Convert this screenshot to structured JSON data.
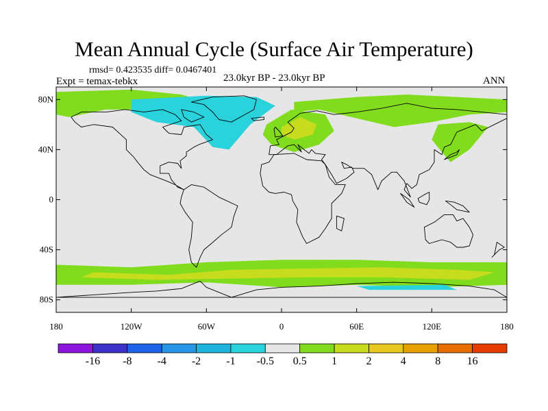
{
  "title": "Mean Annual Cycle (Surface Air Temperature)",
  "stats": {
    "rmsd_text": "rmsd= 0.423535 diff= 0.0467401"
  },
  "experiment": "Expt = temax-tebkx",
  "period": "23.0kyr BP - 23.0kyr BP",
  "season": "ANN",
  "map": {
    "lon_range": [
      -180,
      180
    ],
    "lat_range": [
      -90,
      90
    ],
    "lat_ticks": [
      {
        "value": 80,
        "label": "80N"
      },
      {
        "value": 40,
        "label": "40N"
      },
      {
        "value": 0,
        "label": "0"
      },
      {
        "value": -40,
        "label": "40S"
      },
      {
        "value": -80,
        "label": "80S"
      }
    ],
    "lon_ticks": [
      {
        "value": -180,
        "label": "180"
      },
      {
        "value": -120,
        "label": "120W"
      },
      {
        "value": -60,
        "label": "60W"
      },
      {
        "value": 0,
        "label": "0"
      },
      {
        "value": 60,
        "label": "60E"
      },
      {
        "value": 120,
        "label": "120E"
      },
      {
        "value": 180,
        "label": "180"
      }
    ],
    "background_color": "#e6e6e6"
  },
  "colorbar": {
    "colors": [
      "#8c14dc",
      "#3c32c8",
      "#1e64e6",
      "#2896e6",
      "#1eb4dc",
      "#2ad2dc",
      "#e6e6e6",
      "#82dc1e",
      "#c8dc1e",
      "#e6c81e",
      "#e6a000",
      "#e66e00",
      "#e63c00"
    ],
    "labels": [
      "-16",
      "-8",
      "-4",
      "-2",
      "-1",
      "-0.5",
      "0.5",
      "1",
      "2",
      "4",
      "8",
      "16"
    ]
  },
  "anomaly_regions": [
    {
      "name": "arctic-north-america",
      "color": "#82dc1e",
      "points": [
        [
          -180,
          86
        ],
        [
          -120,
          88
        ],
        [
          -80,
          84
        ],
        [
          -60,
          78
        ],
        [
          -95,
          72
        ],
        [
          -140,
          72
        ],
        [
          -170,
          66
        ],
        [
          -180,
          68
        ]
      ]
    },
    {
      "name": "greenland-north-atlantic",
      "color": "#2ad2dc",
      "points": [
        [
          -120,
          80
        ],
        [
          -60,
          83
        ],
        [
          -20,
          82
        ],
        [
          -5,
          75
        ],
        [
          -25,
          60
        ],
        [
          -42,
          40
        ],
        [
          -55,
          42
        ],
        [
          -70,
          58
        ],
        [
          -100,
          62
        ],
        [
          -120,
          70
        ]
      ]
    },
    {
      "name": "eurasia-arctic",
      "color": "#82dc1e",
      "points": [
        [
          10,
          78
        ],
        [
          60,
          82
        ],
        [
          100,
          84
        ],
        [
          140,
          82
        ],
        [
          180,
          80
        ],
        [
          180,
          70
        ],
        [
          150,
          68
        ],
        [
          120,
          62
        ],
        [
          90,
          58
        ],
        [
          60,
          65
        ],
        [
          30,
          72
        ],
        [
          10,
          70
        ]
      ]
    },
    {
      "name": "europe",
      "color": "#82dc1e",
      "points": [
        [
          -12,
          60
        ],
        [
          8,
          72
        ],
        [
          35,
          68
        ],
        [
          42,
          55
        ],
        [
          30,
          44
        ],
        [
          10,
          38
        ],
        [
          -8,
          44
        ],
        [
          -15,
          52
        ]
      ]
    },
    {
      "name": "europe-warm-core",
      "color": "#c8dc1e",
      "points": [
        [
          0,
          58
        ],
        [
          15,
          66
        ],
        [
          28,
          60
        ],
        [
          25,
          52
        ],
        [
          10,
          48
        ],
        [
          0,
          52
        ]
      ]
    },
    {
      "name": "east-asia",
      "color": "#82dc1e",
      "points": [
        [
          125,
          60
        ],
        [
          150,
          62
        ],
        [
          165,
          58
        ],
        [
          150,
          40
        ],
        [
          135,
          30
        ],
        [
          128,
          38
        ],
        [
          120,
          48
        ]
      ]
    },
    {
      "name": "southern-ocean-band",
      "color": "#82dc1e",
      "points": [
        [
          -180,
          -52
        ],
        [
          -120,
          -54
        ],
        [
          -60,
          -50
        ],
        [
          0,
          -48
        ],
        [
          60,
          -48
        ],
        [
          120,
          -50
        ],
        [
          180,
          -50
        ],
        [
          180,
          -68
        ],
        [
          120,
          -70
        ],
        [
          60,
          -68
        ],
        [
          0,
          -70
        ],
        [
          -60,
          -66
        ],
        [
          -120,
          -68
        ],
        [
          -180,
          -68
        ]
      ]
    },
    {
      "name": "southern-ocean-warm",
      "color": "#c8dc1e",
      "points": [
        [
          -150,
          -58
        ],
        [
          -90,
          -60
        ],
        [
          -40,
          -56
        ],
        [
          20,
          -55
        ],
        [
          80,
          -54
        ],
        [
          140,
          -56
        ],
        [
          170,
          -58
        ],
        [
          150,
          -64
        ],
        [
          80,
          -62
        ],
        [
          20,
          -62
        ],
        [
          -40,
          -63
        ],
        [
          -100,
          -64
        ],
        [
          -160,
          -62
        ]
      ]
    },
    {
      "name": "ross-sea-cool",
      "color": "#2ad2dc",
      "points": [
        [
          60,
          -69
        ],
        [
          130,
          -68
        ],
        [
          140,
          -72
        ],
        [
          70,
          -72
        ]
      ]
    }
  ],
  "coastlines": [
    {
      "name": "north-america",
      "points": [
        [
          -168,
          66
        ],
        [
          -160,
          70
        ],
        [
          -140,
          70
        ],
        [
          -125,
          72
        ],
        [
          -110,
          70
        ],
        [
          -95,
          72
        ],
        [
          -85,
          68
        ],
        [
          -80,
          63
        ],
        [
          -95,
          58
        ],
        [
          -90,
          53
        ],
        [
          -80,
          52
        ],
        [
          -78,
          58
        ],
        [
          -65,
          60
        ],
        [
          -60,
          52
        ],
        [
          -55,
          48
        ],
        [
          -66,
          44
        ],
        [
          -70,
          42
        ],
        [
          -76,
          38
        ],
        [
          -76,
          35
        ],
        [
          -81,
          31
        ],
        [
          -80,
          25
        ],
        [
          -83,
          29
        ],
        [
          -90,
          30
        ],
        [
          -97,
          27
        ],
        [
          -97,
          21
        ],
        [
          -90,
          21
        ],
        [
          -88,
          16
        ],
        [
          -83,
          10
        ],
        [
          -78,
          8
        ],
        [
          -85,
          12
        ],
        [
          -92,
          15
        ],
        [
          -105,
          20
        ],
        [
          -110,
          24
        ],
        [
          -115,
          30
        ],
        [
          -118,
          34
        ],
        [
          -124,
          40
        ],
        [
          -124,
          48
        ],
        [
          -135,
          58
        ],
        [
          -150,
          60
        ],
        [
          -160,
          58
        ],
        [
          -165,
          62
        ]
      ]
    },
    {
      "name": "greenland",
      "points": [
        [
          -72,
          78
        ],
        [
          -55,
          82
        ],
        [
          -30,
          83
        ],
        [
          -20,
          80
        ],
        [
          -22,
          72
        ],
        [
          -40,
          62
        ],
        [
          -50,
          64
        ],
        [
          -55,
          70
        ],
        [
          -62,
          76
        ]
      ]
    },
    {
      "name": "south-america",
      "points": [
        [
          -78,
          8
        ],
        [
          -72,
          12
        ],
        [
          -62,
          10
        ],
        [
          -50,
          2
        ],
        [
          -35,
          -5
        ],
        [
          -38,
          -13
        ],
        [
          -40,
          -22
        ],
        [
          -48,
          -28
        ],
        [
          -56,
          -35
        ],
        [
          -62,
          -40
        ],
        [
          -65,
          -46
        ],
        [
          -68,
          -54
        ],
        [
          -72,
          -50
        ],
        [
          -74,
          -40
        ],
        [
          -72,
          -30
        ],
        [
          -71,
          -18
        ],
        [
          -77,
          -10
        ],
        [
          -81,
          -3
        ],
        [
          -80,
          2
        ]
      ]
    },
    {
      "name": "eurasia",
      "points": [
        [
          -10,
          36
        ],
        [
          -9,
          43
        ],
        [
          -2,
          44
        ],
        [
          -4,
          48
        ],
        [
          2,
          51
        ],
        [
          8,
          54
        ],
        [
          10,
          57
        ],
        [
          5,
          62
        ],
        [
          15,
          69
        ],
        [
          28,
          71
        ],
        [
          42,
          68
        ],
        [
          60,
          70
        ],
        [
          80,
          73
        ],
        [
          100,
          77
        ],
        [
          120,
          73
        ],
        [
          140,
          72
        ],
        [
          160,
          70
        ],
        [
          180,
          68
        ],
        [
          180,
          65
        ],
        [
          170,
          60
        ],
        [
          160,
          55
        ],
        [
          155,
          60
        ],
        [
          140,
          54
        ],
        [
          135,
          44
        ],
        [
          130,
          42
        ],
        [
          128,
          36
        ],
        [
          122,
          40
        ],
        [
          122,
          30
        ],
        [
          118,
          24
        ],
        [
          110,
          20
        ],
        [
          108,
          12
        ],
        [
          104,
          9
        ],
        [
          100,
          13
        ],
        [
          98,
          8
        ],
        [
          103,
          2
        ],
        [
          98,
          15
        ],
        [
          92,
          22
        ],
        [
          88,
          22
        ],
        [
          80,
          15
        ],
        [
          77,
          8
        ],
        [
          72,
          20
        ],
        [
          66,
          25
        ],
        [
          57,
          25
        ],
        [
          52,
          28
        ],
        [
          48,
          30
        ],
        [
          50,
          25
        ],
        [
          56,
          26
        ],
        [
          58,
          22
        ],
        [
          52,
          17
        ],
        [
          44,
          13
        ],
        [
          40,
          20
        ],
        [
          35,
          28
        ],
        [
          32,
          32
        ],
        [
          35,
          36
        ],
        [
          27,
          37
        ],
        [
          24,
          40
        ],
        [
          22,
          37
        ],
        [
          18,
          40
        ],
        [
          13,
          44
        ],
        [
          16,
          38
        ],
        [
          10,
          44
        ],
        [
          5,
          43
        ],
        [
          -4,
          36
        ]
      ]
    },
    {
      "name": "africa",
      "points": [
        [
          -17,
          21
        ],
        [
          -16,
          28
        ],
        [
          -10,
          30
        ],
        [
          -6,
          36
        ],
        [
          10,
          37
        ],
        [
          20,
          32
        ],
        [
          32,
          31
        ],
        [
          35,
          28
        ],
        [
          38,
          18
        ],
        [
          43,
          12
        ],
        [
          51,
          12
        ],
        [
          48,
          5
        ],
        [
          40,
          -3
        ],
        [
          40,
          -15
        ],
        [
          35,
          -23
        ],
        [
          30,
          -30
        ],
        [
          20,
          -35
        ],
        [
          17,
          -30
        ],
        [
          12,
          -18
        ],
        [
          13,
          -8
        ],
        [
          9,
          -1
        ],
        [
          8,
          4
        ],
        [
          2,
          6
        ],
        [
          -5,
          5
        ],
        [
          -10,
          6
        ],
        [
          -15,
          11
        ]
      ]
    },
    {
      "name": "australia",
      "points": [
        [
          114,
          -22
        ],
        [
          122,
          -18
        ],
        [
          130,
          -12
        ],
        [
          137,
          -12
        ],
        [
          140,
          -17
        ],
        [
          145,
          -15
        ],
        [
          150,
          -22
        ],
        [
          153,
          -28
        ],
        [
          150,
          -37
        ],
        [
          145,
          -38
        ],
        [
          140,
          -38
        ],
        [
          135,
          -34
        ],
        [
          128,
          -32
        ],
        [
          118,
          -35
        ],
        [
          115,
          -32
        ]
      ]
    },
    {
      "name": "antarctica",
      "points": [
        [
          -180,
          -78
        ],
        [
          -150,
          -76
        ],
        [
          -120,
          -74
        ],
        [
          -100,
          -73
        ],
        [
          -80,
          -71
        ],
        [
          -65,
          -65
        ],
        [
          -60,
          -70
        ],
        [
          -40,
          -78
        ],
        [
          -20,
          -72
        ],
        [
          0,
          -70
        ],
        [
          30,
          -69
        ],
        [
          60,
          -67
        ],
        [
          90,
          -66
        ],
        [
          120,
          -67
        ],
        [
          150,
          -69
        ],
        [
          170,
          -72
        ],
        [
          180,
          -78
        ]
      ]
    },
    {
      "name": "madagascar",
      "points": [
        [
          44,
          -13
        ],
        [
          50,
          -15
        ],
        [
          48,
          -25
        ],
        [
          44,
          -23
        ]
      ]
    },
    {
      "name": "great-britain",
      "points": [
        [
          -5,
          50
        ],
        [
          1,
          51
        ],
        [
          -2,
          55
        ],
        [
          -5,
          58
        ],
        [
          -6,
          56
        ]
      ]
    },
    {
      "name": "japan",
      "points": [
        [
          130,
          32
        ],
        [
          135,
          34
        ],
        [
          140,
          36
        ],
        [
          142,
          40
        ],
        [
          140,
          38
        ],
        [
          135,
          36
        ]
      ]
    },
    {
      "name": "new-zealand",
      "points": [
        [
          168,
          -46
        ],
        [
          174,
          -40
        ],
        [
          178,
          -38
        ],
        [
          172,
          -34
        ],
        [
          170,
          -44
        ]
      ]
    },
    {
      "name": "borneo",
      "points": [
        [
          109,
          1
        ],
        [
          114,
          4
        ],
        [
          118,
          6
        ],
        [
          118,
          0
        ],
        [
          116,
          -4
        ],
        [
          110,
          -2
        ]
      ]
    },
    {
      "name": "sumatra",
      "points": [
        [
          95,
          5
        ],
        [
          102,
          0
        ],
        [
          106,
          -6
        ],
        [
          100,
          -2
        ]
      ]
    },
    {
      "name": "new-guinea",
      "points": [
        [
          131,
          -1
        ],
        [
          138,
          -2
        ],
        [
          145,
          -5
        ],
        [
          150,
          -10
        ],
        [
          140,
          -8
        ],
        [
          135,
          -4
        ]
      ]
    },
    {
      "name": "baffin-island",
      "points": [
        [
          -80,
          72
        ],
        [
          -70,
          70
        ],
        [
          -62,
          66
        ],
        [
          -72,
          62
        ],
        [
          -78,
          66
        ]
      ]
    },
    {
      "name": "iceland",
      "points": [
        [
          -24,
          65
        ],
        [
          -14,
          66
        ],
        [
          -14,
          64
        ],
        [
          -22,
          63
        ]
      ]
    }
  ]
}
